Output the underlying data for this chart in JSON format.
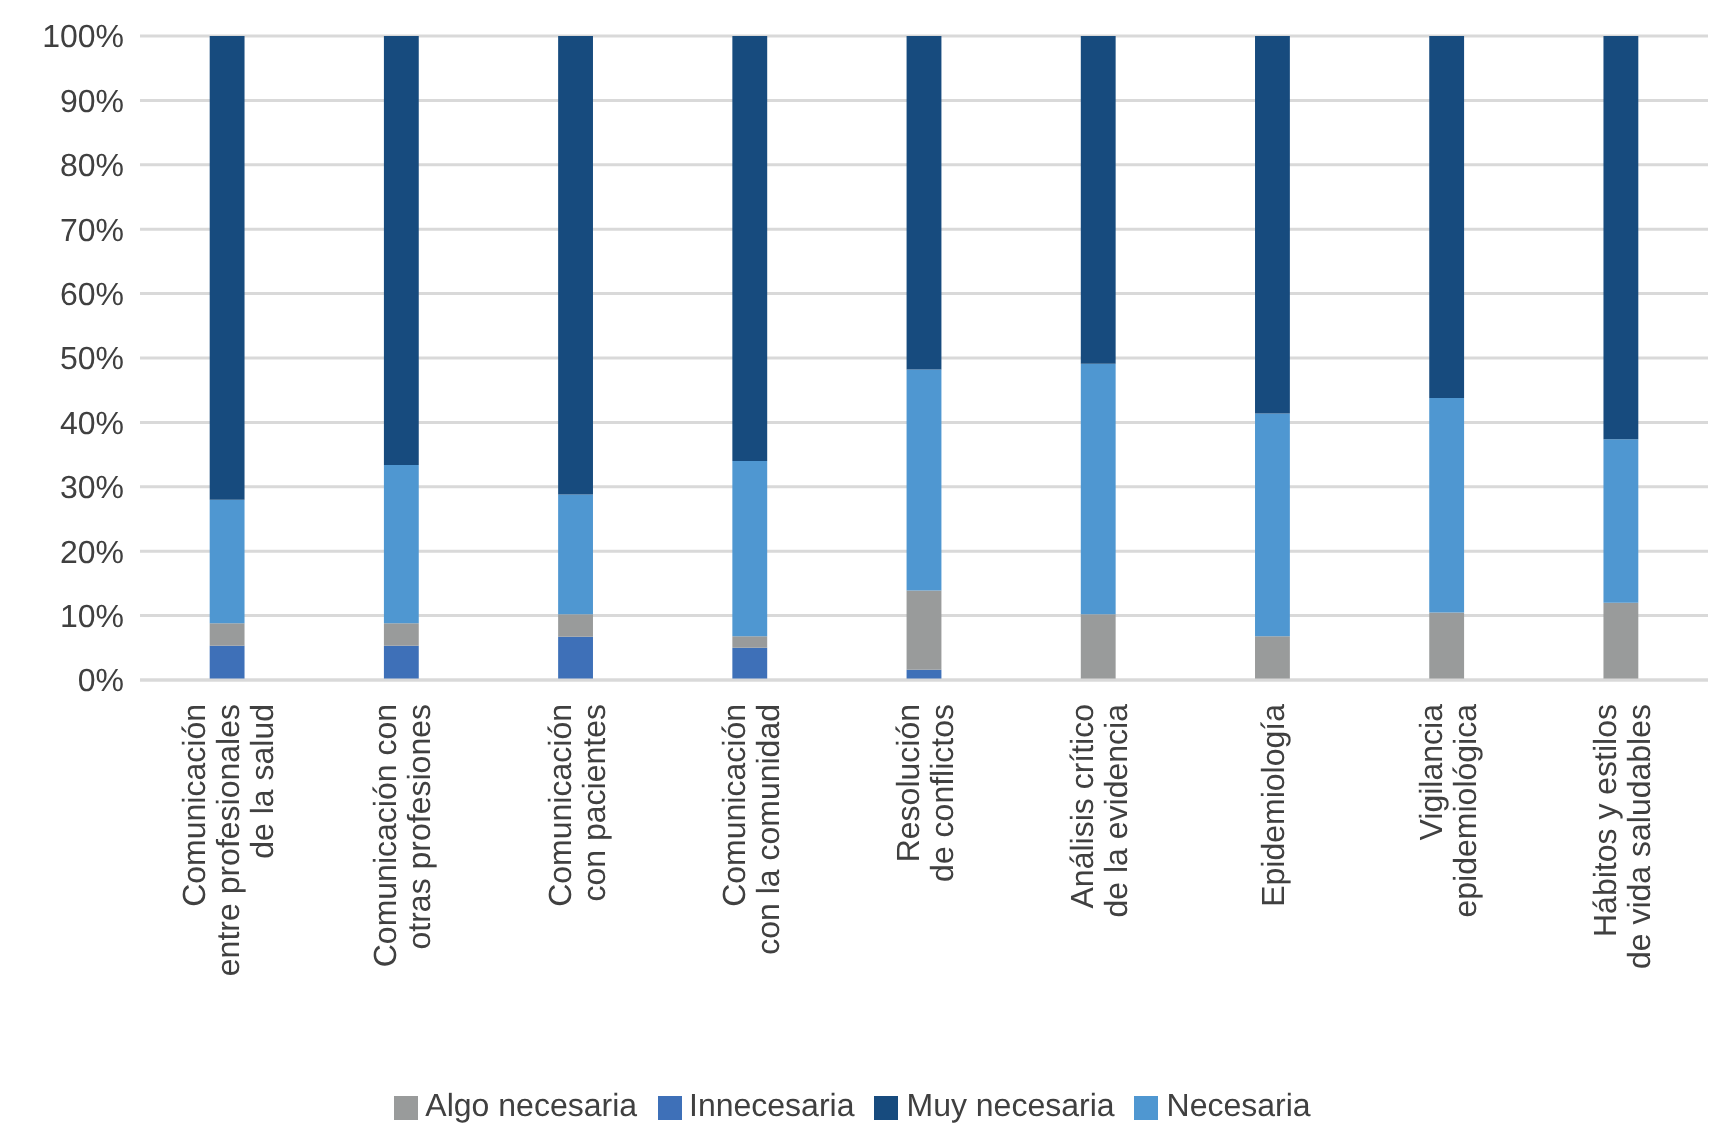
{
  "chart_data": {
    "type": "bar",
    "stacked": true,
    "categories": [
      "Comunicación\nentre profesionales\nde la salud",
      "Comunicación con\notras profesiones",
      "Comunicación\ncon pacientes",
      "Comunicación\ncon la comunidad",
      "Resolución\nde conflictos",
      "Análisis crítico\nde la evidencia",
      "Epidemiología",
      "Vigilancia\nepidemiológica",
      "Hábitos y estilos\nde vida saludables"
    ],
    "series": [
      {
        "name": "Innecesaria",
        "color": "#3e70b8",
        "values": [
          5.3,
          5.3,
          6.7,
          5.0,
          1.6,
          0,
          0,
          0,
          0
        ]
      },
      {
        "name": "Algo necesaria",
        "color": "#999b9b",
        "values": [
          3.5,
          3.5,
          3.5,
          1.8,
          12.3,
          10.2,
          6.8,
          10.5,
          12.0
        ]
      },
      {
        "name": "Necesaria",
        "color": "#4f97d1",
        "values": [
          19.2,
          24.6,
          18.6,
          27.2,
          34.3,
          38.9,
          34.6,
          33.3,
          25.4
        ]
      },
      {
        "name": "Muy necesaria",
        "color": "#174b7e",
        "values": [
          72.0,
          66.6,
          71.2,
          66.0,
          51.8,
          50.9,
          58.6,
          56.2,
          62.6
        ]
      }
    ],
    "ylim": [
      0,
      100
    ],
    "yticks": [
      {
        "value": 0,
        "label": "0%"
      },
      {
        "value": 10,
        "label": "10%"
      },
      {
        "value": 20,
        "label": "20%"
      },
      {
        "value": 30,
        "label": "30%"
      },
      {
        "value": 40,
        "label": "40%"
      },
      {
        "value": 50,
        "label": "50%"
      },
      {
        "value": 60,
        "label": "60%"
      },
      {
        "value": 70,
        "label": "70%"
      },
      {
        "value": 80,
        "label": "80%"
      },
      {
        "value": 90,
        "label": "90%"
      },
      {
        "value": 100,
        "label": "100%"
      }
    ],
    "grid": "y",
    "legend": "bottom"
  }
}
